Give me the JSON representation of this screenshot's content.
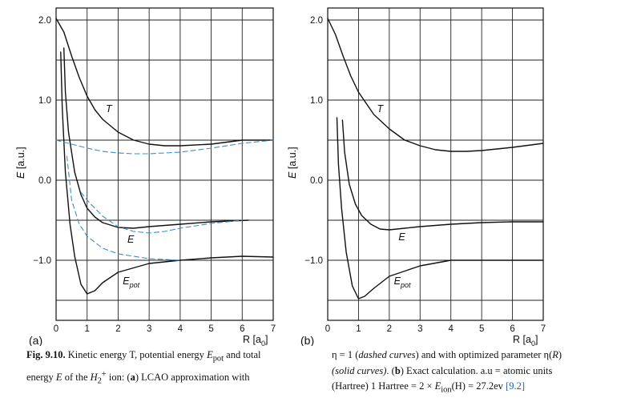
{
  "chart_data": [
    {
      "panel": "(a)",
      "type": "line",
      "title": "",
      "xlabel": "R [a0]",
      "ylabel": "E [a.u.]",
      "xlim": [
        0,
        7
      ],
      "ylim": [
        -1.75,
        2.15
      ],
      "xticks": [
        0,
        1,
        2,
        3,
        4,
        5,
        6,
        7
      ],
      "yticks": [
        {
          "value": 2.0,
          "label": "2.0"
        },
        {
          "value": 1.0,
          "label": "1.0"
        },
        {
          "value": 0.0,
          "label": "0.0"
        },
        {
          "value": -1.0,
          "label": "−1.0"
        }
      ],
      "grid": true,
      "series": [
        {
          "name": "T",
          "style": "solid",
          "color": "#111111",
          "x": [
            0,
            0.25,
            0.5,
            0.75,
            1.0,
            1.25,
            1.5,
            2.0,
            2.5,
            3.0,
            3.5,
            4.0,
            5.0,
            6.0,
            7.0
          ],
          "y": [
            2.02,
            1.85,
            1.55,
            1.28,
            1.05,
            0.88,
            0.76,
            0.6,
            0.5,
            0.45,
            0.43,
            0.43,
            0.45,
            0.5,
            0.5
          ]
        },
        {
          "name": "E",
          "style": "solid",
          "color": "#111111",
          "x": [
            0.25,
            0.3,
            0.4,
            0.6,
            0.8,
            1.0,
            1.25,
            1.5,
            2.0,
            2.5,
            3.0,
            4.0,
            5.0,
            6.2
          ],
          "y": [
            1.65,
            1.1,
            0.6,
            0.1,
            -0.18,
            -0.35,
            -0.46,
            -0.53,
            -0.59,
            -0.6,
            -0.58,
            -0.55,
            -0.52,
            -0.5
          ]
        },
        {
          "name": "Epot",
          "style": "solid",
          "color": "#111111",
          "x": [
            0.15,
            0.2,
            0.3,
            0.45,
            0.6,
            0.8,
            1.0,
            1.25,
            1.5,
            2.0,
            3.0,
            4.0,
            5.0,
            6.0,
            7.0
          ],
          "y": [
            1.6,
            0.9,
            0.1,
            -0.55,
            -0.95,
            -1.3,
            -1.42,
            -1.38,
            -1.28,
            -1.15,
            -1.04,
            -1.0,
            -0.97,
            -0.95,
            -0.96
          ]
        },
        {
          "name": "T (dashed)",
          "style": "dashed",
          "color": "#3d8fc4",
          "x": [
            0,
            0.5,
            1.0,
            1.5,
            2.0,
            2.5,
            3.0,
            4.0,
            5.0,
            6.0,
            7.0
          ],
          "y": [
            0.5,
            0.45,
            0.4,
            0.36,
            0.34,
            0.33,
            0.33,
            0.35,
            0.4,
            0.46,
            0.5
          ]
        },
        {
          "name": "E (dashed)",
          "style": "dashed",
          "color": "#3d8fc4",
          "x": [
            0.8,
            1.0,
            1.5,
            2.0,
            2.5,
            3.0,
            3.5,
            4.0,
            5.0,
            6.0
          ],
          "y": [
            -0.15,
            -0.25,
            -0.45,
            -0.58,
            -0.64,
            -0.66,
            -0.64,
            -0.6,
            -0.54,
            -0.5
          ]
        },
        {
          "name": "Epot (dashed)",
          "style": "dashed",
          "color": "#3d8fc4",
          "x": [
            0.35,
            0.5,
            0.75,
            1.0,
            1.5,
            2.0,
            3.0,
            4.0
          ],
          "y": [
            0.3,
            -0.25,
            -0.55,
            -0.7,
            -0.85,
            -0.92,
            -0.98,
            -1.0
          ]
        }
      ],
      "annotations": [
        {
          "text": "T",
          "x": 1.6,
          "y": 0.85
        },
        {
          "text": "E",
          "x": 2.3,
          "y": -0.78
        },
        {
          "text": "Epot",
          "x": 2.15,
          "y": -1.3
        }
      ]
    },
    {
      "panel": "(b)",
      "type": "line",
      "title": "",
      "xlabel": "R [a0]",
      "ylabel": "E [a.u.]",
      "xlim": [
        0,
        7
      ],
      "ylim": [
        -1.75,
        2.15
      ],
      "xticks": [
        0,
        1,
        2,
        3,
        4,
        5,
        6,
        7
      ],
      "yticks": [
        {
          "value": 2.0,
          "label": "2.0"
        },
        {
          "value": 1.0,
          "label": "1.0"
        },
        {
          "value": 0.0,
          "label": "0.0"
        },
        {
          "value": -1.0,
          "label": "−1.0"
        }
      ],
      "grid": true,
      "series": [
        {
          "name": "T",
          "style": "solid",
          "color": "#111111",
          "x": [
            0,
            0.25,
            0.5,
            0.75,
            1.0,
            1.5,
            2.0,
            2.5,
            3.0,
            3.5,
            4.0,
            4.5,
            5.0,
            6.0,
            7.0
          ],
          "y": [
            2.02,
            1.82,
            1.55,
            1.3,
            1.1,
            0.82,
            0.64,
            0.5,
            0.43,
            0.38,
            0.36,
            0.36,
            0.37,
            0.41,
            0.46
          ]
        },
        {
          "name": "E",
          "style": "solid",
          "color": "#111111",
          "x": [
            0.48,
            0.55,
            0.7,
            0.9,
            1.1,
            1.4,
            1.7,
            2.0,
            2.5,
            3.0,
            4.0,
            5.0,
            6.0,
            7.0
          ],
          "y": [
            0.75,
            0.35,
            -0.05,
            -0.3,
            -0.44,
            -0.55,
            -0.61,
            -0.62,
            -0.6,
            -0.58,
            -0.55,
            -0.53,
            -0.52,
            -0.52
          ]
        },
        {
          "name": "Epot",
          "style": "solid",
          "color": "#111111",
          "x": [
            0.3,
            0.35,
            0.45,
            0.6,
            0.8,
            1.0,
            1.2,
            1.5,
            2.0,
            3.0,
            4.0,
            5.0,
            6.0,
            7.0
          ],
          "y": [
            0.78,
            0.2,
            -0.35,
            -0.9,
            -1.32,
            -1.48,
            -1.45,
            -1.35,
            -1.2,
            -1.07,
            -1.0,
            -1.0,
            -1.0,
            -1.0
          ]
        }
      ],
      "annotations": [
        {
          "text": "T",
          "x": 1.6,
          "y": 0.85
        },
        {
          "text": "E",
          "x": 2.3,
          "y": -0.75
        },
        {
          "text": "Epot",
          "x": 2.15,
          "y": -1.3
        }
      ]
    }
  ],
  "caption": {
    "fig_label": "Fig. 9.10.",
    "left_1": "Kinetic energy T, potential energy",
    "epot": "E",
    "epot_sub": "pot",
    "left_2": "and total",
    "left_3": "energy",
    "left_4": "of the",
    "h_sub": "2",
    "h_sup": "+",
    "left_5": "ion: (",
    "a": "a",
    "left_6": ") LCAO approximation with",
    "right_1a": "η = 1 (",
    "dashed": "dashed curves",
    "right_1b": ") and with optimized parameter η(",
    "right_1c": ")",
    "solid": "(solid curves)",
    "right_2a": ". (",
    "b": "b",
    "right_2b": ") Exact calculation. a.u = atomic units",
    "right_3a": "(Hartree) 1 Hartree = 2 ×",
    "ion": "ion",
    "right_3b": "(H) = 27.2ev",
    "cite": "[9.2]"
  }
}
